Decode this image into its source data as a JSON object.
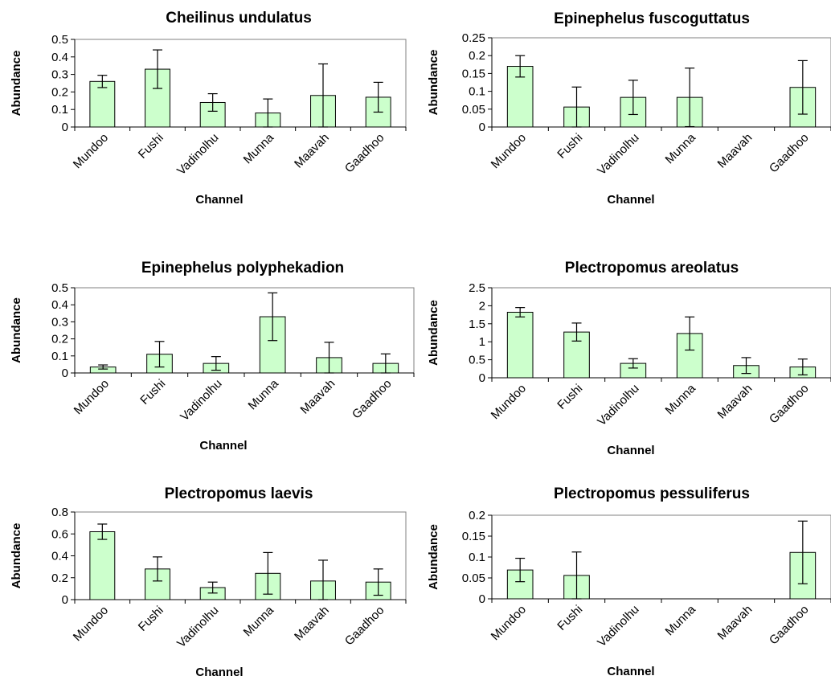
{
  "chart_data": [
    {
      "type": "bar",
      "title": "Cheilinus undulatus",
      "xlabel": "Channel",
      "ylabel": "Abundance",
      "categories": [
        "Mundoo",
        "Fushi",
        "Vadinolhu",
        "Munna",
        "Maavah",
        "Gaadhoo"
      ],
      "values": [
        0.26,
        0.33,
        0.14,
        0.08,
        0.18,
        0.17
      ],
      "error": [
        0.035,
        0.11,
        0.05,
        0.08,
        0.18,
        0.085
      ],
      "ylim": [
        0,
        0.5
      ],
      "yticks": [
        "0",
        "0.1",
        "0.2",
        "0.3",
        "0.4",
        "0.5"
      ],
      "ytick_values": [
        0,
        0.1,
        0.2,
        0.3,
        0.4,
        0.5
      ],
      "bar_color": "#ccffcc",
      "grid": false
    },
    {
      "type": "bar",
      "title": "Epinephelus fuscoguttatus",
      "xlabel": "Channel",
      "ylabel": "Abundance",
      "categories": [
        "Mundoo",
        "Fushi",
        "Vadinolhu",
        "Munna",
        "Maavah",
        "Gaadhoo"
      ],
      "values": [
        0.17,
        0.056,
        0.083,
        0.083,
        0,
        0.111
      ],
      "error": [
        0.03,
        0.056,
        0.048,
        0.082,
        0,
        0.075
      ],
      "ylim": [
        0,
        0.25
      ],
      "yticks": [
        "0",
        "0.05",
        "0.1",
        "0.15",
        "0.2",
        "0.25"
      ],
      "ytick_values": [
        0,
        0.05,
        0.1,
        0.15,
        0.2,
        0.25
      ],
      "bar_color": "#ccffcc",
      "grid": false
    },
    {
      "type": "bar",
      "title": "Epinephelus polyphekadion",
      "xlabel": "Channel",
      "ylabel": "Abundance",
      "categories": [
        "Mundoo",
        "Fushi",
        "Vadinolhu",
        "Munna",
        "Maavah",
        "Gaadhoo"
      ],
      "values": [
        0.035,
        0.11,
        0.056,
        0.33,
        0.09,
        0.056
      ],
      "error": [
        0.012,
        0.075,
        0.04,
        0.14,
        0.09,
        0.056
      ],
      "ylim": [
        0,
        0.5
      ],
      "yticks": [
        "0",
        "0.1",
        "0.2",
        "0.3",
        "0.4",
        "0.5"
      ],
      "ytick_values": [
        0,
        0.1,
        0.2,
        0.3,
        0.4,
        0.5
      ],
      "bar_color": "#ccffcc",
      "grid": false
    },
    {
      "type": "bar",
      "title": "Plectropomus areolatus",
      "xlabel": "Channel",
      "ylabel": "Abundance",
      "categories": [
        "Mundoo",
        "Fushi",
        "Vadinolhu",
        "Munna",
        "Maavah",
        "Gaadhoo"
      ],
      "values": [
        1.82,
        1.27,
        0.4,
        1.23,
        0.34,
        0.3
      ],
      "error": [
        0.13,
        0.25,
        0.13,
        0.46,
        0.22,
        0.22
      ],
      "ylim": [
        0,
        2.5
      ],
      "yticks": [
        "0",
        "0.5",
        "1",
        "1.5",
        "2",
        "2.5"
      ],
      "ytick_values": [
        0,
        0.5,
        1,
        1.5,
        2,
        2.5
      ],
      "bar_color": "#ccffcc",
      "grid": false
    },
    {
      "type": "bar",
      "title": "Plectropomus laevis",
      "xlabel": "Channel",
      "ylabel": "Abundance",
      "categories": [
        "Mundoo",
        "Fushi",
        "Vadinolhu",
        "Munna",
        "Maavah",
        "Gaadhoo"
      ],
      "values": [
        0.62,
        0.28,
        0.11,
        0.24,
        0.17,
        0.16
      ],
      "error": [
        0.07,
        0.11,
        0.05,
        0.19,
        0.19,
        0.12
      ],
      "ylim": [
        0,
        0.8
      ],
      "yticks": [
        "0",
        "0.2",
        "0.4",
        "0.6",
        "0.8"
      ],
      "ytick_values": [
        0,
        0.2,
        0.4,
        0.6,
        0.8
      ],
      "bar_color": "#ccffcc",
      "grid": false
    },
    {
      "type": "bar",
      "title": "Plectropomus pessuliferus",
      "xlabel": "Channel",
      "ylabel": "Abundance",
      "categories": [
        "Mundoo",
        "Fushi",
        "Vadinolhu",
        "Munna",
        "Maavah",
        "Gaadhoo"
      ],
      "values": [
        0.069,
        0.056,
        0,
        0,
        0,
        0.111
      ],
      "error": [
        0.028,
        0.056,
        0,
        0,
        0,
        0.075
      ],
      "ylim": [
        0,
        0.2
      ],
      "yticks": [
        "0",
        "0.05",
        "0.1",
        "0.15",
        "0.2"
      ],
      "ytick_values": [
        0,
        0.05,
        0.1,
        0.15,
        0.2
      ],
      "bar_color": "#ccffcc",
      "grid": false
    }
  ]
}
